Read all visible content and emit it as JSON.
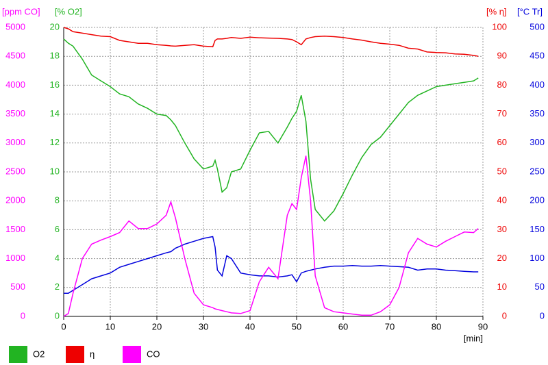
{
  "chart_data": {
    "type": "line",
    "x_label": "[min]",
    "x": [
      0,
      1,
      2,
      4,
      6,
      8,
      10,
      12,
      14,
      16,
      18,
      20,
      22,
      23,
      24,
      26,
      28,
      30,
      32,
      32.5,
      33,
      34,
      35,
      36,
      38,
      40,
      42,
      44,
      46,
      48,
      49,
      50,
      51,
      52,
      53,
      54,
      56,
      58,
      60,
      62,
      64,
      66,
      68,
      70,
      72,
      74,
      76,
      78,
      80,
      82,
      84,
      86,
      88,
      89
    ],
    "xlim": [
      0,
      90
    ],
    "xticks": [
      0,
      10,
      20,
      30,
      40,
      50,
      60,
      70,
      80,
      90
    ],
    "y_label": "[ppm CO]",
    "ylim": [
      0,
      5000
    ],
    "yticks": [
      0,
      500,
      1000,
      1500,
      2000,
      2500,
      3000,
      3500,
      4000,
      4500,
      5000
    ],
    "y2_label": "[% O2]",
    "y2lim": [
      0,
      20
    ],
    "y2ticks": [
      0,
      2,
      4,
      6,
      8,
      10,
      12,
      14,
      16,
      18,
      20
    ],
    "y3_label": "[% η]",
    "y3lim": [
      0,
      100
    ],
    "y3ticks": [
      0,
      10,
      20,
      30,
      40,
      50,
      60,
      70,
      80,
      90,
      100
    ],
    "y4_label": "[°C Tr]",
    "y4lim": [
      0,
      500
    ],
    "y4ticks": [
      0,
      50,
      100,
      150,
      200,
      250,
      300,
      350,
      400,
      450,
      500
    ],
    "grid": true,
    "series": [
      {
        "name": "O2",
        "color": "#22b422",
        "axis": "y2",
        "values": [
          19.2,
          18.9,
          18.7,
          17.8,
          16.7,
          16.3,
          15.9,
          15.4,
          15.2,
          14.7,
          14.4,
          14.0,
          13.9,
          13.6,
          13.2,
          12.0,
          10.9,
          10.2,
          10.4,
          10.8,
          10.2,
          8.6,
          8.9,
          10.0,
          10.2,
          11.5,
          12.7,
          12.8,
          12.0,
          13.1,
          13.7,
          14.2,
          15.3,
          13.5,
          9.5,
          7.4,
          6.6,
          7.3,
          8.5,
          9.8,
          11.0,
          11.9,
          12.4,
          13.2,
          14.0,
          14.8,
          15.3,
          15.6,
          15.9,
          16.0,
          16.1,
          16.2,
          16.3,
          16.5
        ]
      },
      {
        "name": "η",
        "color": "#ee0000",
        "axis": "y3",
        "values": [
          100,
          99.5,
          98.5,
          98,
          97.5,
          97,
          96.8,
          95.5,
          95,
          94.5,
          94.5,
          94,
          93.8,
          93.6,
          93.5,
          93.8,
          94,
          93.5,
          93.3,
          95.5,
          96,
          96,
          96.2,
          96.5,
          96.2,
          96.6,
          96.4,
          96.3,
          96.2,
          96,
          95.8,
          95,
          94,
          96,
          96.5,
          96.8,
          97,
          96.8,
          96.5,
          96,
          95.6,
          95,
          94.5,
          94.2,
          93.8,
          92.8,
          92.5,
          91.5,
          91.3,
          91.2,
          90.8,
          90.7,
          90.3,
          90
        ]
      },
      {
        "name": "CO",
        "color": "#ff00ff",
        "axis": "y",
        "values": [
          0,
          50,
          400,
          1000,
          1250,
          1320,
          1380,
          1450,
          1650,
          1520,
          1520,
          1600,
          1750,
          1980,
          1700,
          1000,
          400,
          200,
          150,
          130,
          120,
          100,
          80,
          60,
          50,
          100,
          600,
          850,
          650,
          1750,
          1950,
          1850,
          2400,
          2780,
          2000,
          700,
          150,
          80,
          60,
          40,
          20,
          20,
          80,
          200,
          500,
          1100,
          1350,
          1250,
          1200,
          1300,
          1380,
          1460,
          1450,
          1520
        ]
      },
      {
        "color": "#0000dd",
        "axis": "y4",
        "values": [
          40,
          40,
          45,
          55,
          65,
          70,
          75,
          85,
          90,
          95,
          100,
          105,
          110,
          112,
          118,
          125,
          130,
          135,
          138,
          120,
          80,
          70,
          105,
          100,
          75,
          72,
          70,
          70,
          68,
          70,
          72,
          60,
          75,
          78,
          80,
          82,
          85,
          87,
          87,
          88,
          87,
          87,
          88,
          87,
          86,
          85,
          80,
          82,
          82,
          80,
          79,
          78,
          77,
          77
        ]
      }
    ]
  }
}
